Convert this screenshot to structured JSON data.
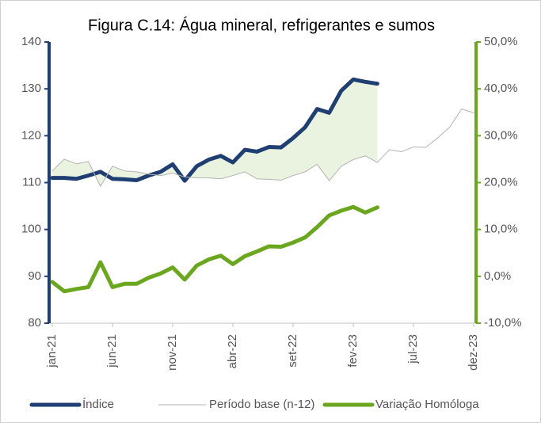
{
  "chart_data": {
    "type": "line",
    "title": "Figura C.14: Água mineral, refrigerantes e sumos",
    "categories": [
      "jan-21",
      null,
      null,
      null,
      null,
      "jun-21",
      null,
      null,
      null,
      null,
      "nov-21",
      null,
      null,
      null,
      null,
      "abr-22",
      null,
      null,
      null,
      null,
      "set-22",
      null,
      null,
      null,
      null,
      "fev-23",
      null,
      null,
      null,
      null,
      "jul-23",
      null,
      null,
      null,
      null,
      "dez-23"
    ],
    "series": [
      {
        "name": "Índice",
        "color": "#1f3f73",
        "values": [
          111,
          111,
          110.8,
          111.5,
          112.3,
          110.8,
          110.7,
          110.5,
          111.5,
          112.3,
          113.9,
          110.4,
          113.5,
          114.9,
          115.7,
          114.3,
          117,
          116.6,
          117.6,
          117.5,
          119.5,
          121.8,
          125.7,
          124.9,
          129.6,
          132,
          131.5,
          131.1,
          null,
          null,
          null,
          null,
          null,
          null,
          null,
          null
        ]
      },
      {
        "name": "Período base (n-12)",
        "color": "#b4b4b4",
        "values": [
          112.5,
          115,
          114,
          114.5,
          109.2,
          113.5,
          112.5,
          112.3,
          111.8,
          111.5,
          112,
          111.2,
          111,
          111,
          110.8,
          111.5,
          112.3,
          110.8,
          110.7,
          110.5,
          111.5,
          112.3,
          113.9,
          110.4,
          113.5,
          114.9,
          115.7,
          114.3,
          117,
          116.6,
          117.6,
          117.5,
          119.5,
          121.8,
          125.7,
          124.9
        ]
      },
      {
        "name": "Variação Homóloga",
        "color": "#6aa71f",
        "axis": "y2",
        "values": [
          -1.2,
          -3.2,
          -2.7,
          -2.3,
          3.0,
          -2.3,
          -1.6,
          -1.6,
          -0.3,
          0.6,
          1.9,
          -0.7,
          2.3,
          3.6,
          4.4,
          2.6,
          4.3,
          5.3,
          6.4,
          6.3,
          7.2,
          8.3,
          10.5,
          13.0,
          14.0,
          14.8,
          13.6,
          14.7,
          null,
          null,
          null,
          null,
          null,
          null,
          null,
          null
        ]
      }
    ],
    "ylim": [
      80,
      140
    ],
    "yticks": [
      80,
      90,
      100,
      110,
      120,
      130,
      140
    ],
    "y2lim": [
      -10,
      50
    ],
    "y2ticks": [
      {
        "value": -10,
        "label": "-10,0%"
      },
      {
        "value": 0,
        "label": "0,0%"
      },
      {
        "value": 10,
        "label": "10,0%"
      },
      {
        "value": 20,
        "label": "20,0%"
      },
      {
        "value": 30,
        "label": "30,0%"
      },
      {
        "value": 40,
        "label": "40,0%"
      },
      {
        "value": 50,
        "label": "50,0%"
      }
    ],
    "grid": false
  }
}
